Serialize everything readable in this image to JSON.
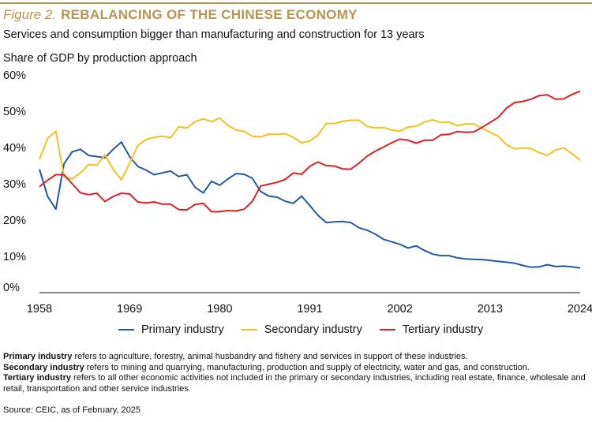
{
  "header": {
    "figure_number": "Figure 2.",
    "title": "REBALANCING OF THE CHINESE ECONOMY",
    "subtitle": "Services and consumption bigger than manufacturing and construction for 13 years",
    "y_axis_title": "Share of GDP by production approach"
  },
  "colors": {
    "primary": "#2457a8",
    "secondary": "#f2c21b",
    "tertiary": "#dd1f26",
    "accent": "#b8954e"
  },
  "chart_data": {
    "type": "line",
    "title": "REBALANCING OF THE CHINESE ECONOMY",
    "ylabel": "Share of GDP by production approach",
    "xlim": [
      1958,
      2024
    ],
    "ylim": [
      0,
      60
    ],
    "x_ticks": [
      1958,
      1969,
      1980,
      1991,
      2002,
      2013,
      2024
    ],
    "y_ticks": [
      0,
      10,
      20,
      30,
      40,
      50,
      60
    ],
    "y_tick_labels": [
      "0%",
      "10%",
      "20%",
      "30%",
      "40%",
      "50%",
      "60%"
    ],
    "grid": false,
    "legend": "bottom",
    "x": [
      1958,
      1959,
      1960,
      1961,
      1962,
      1963,
      1964,
      1965,
      1966,
      1967,
      1968,
      1969,
      1970,
      1971,
      1972,
      1973,
      1974,
      1975,
      1976,
      1977,
      1978,
      1979,
      1980,
      1981,
      1982,
      1983,
      1984,
      1985,
      1986,
      1987,
      1988,
      1989,
      1990,
      1991,
      1992,
      1993,
      1994,
      1995,
      1996,
      1997,
      1998,
      1999,
      2000,
      2001,
      2002,
      2003,
      2004,
      2005,
      2006,
      2007,
      2008,
      2009,
      2010,
      2011,
      2012,
      2013,
      2014,
      2015,
      2016,
      2017,
      2018,
      2019,
      2020,
      2021,
      2022,
      2023,
      2024
    ],
    "series": [
      {
        "name": "Primary industry",
        "color": "#2457a8",
        "values": [
          34.0,
          26.5,
          23.0,
          35.5,
          38.8,
          39.5,
          37.8,
          37.5,
          37.2,
          39.5,
          41.5,
          37.5,
          34.8,
          33.8,
          32.5,
          33.0,
          33.5,
          32.0,
          32.5,
          29.0,
          27.5,
          30.7,
          29.6,
          31.3,
          32.8,
          32.6,
          31.5,
          27.9,
          26.6,
          26.3,
          25.2,
          24.6,
          26.6,
          24.0,
          21.3,
          19.3,
          19.5,
          19.6,
          19.3,
          17.9,
          17.2,
          16.1,
          14.7,
          14.0,
          13.3,
          12.3,
          12.9,
          11.6,
          10.6,
          10.2,
          10.2,
          9.6,
          9.3,
          9.2,
          9.1,
          8.9,
          8.6,
          8.4,
          8.1,
          7.5,
          7.0,
          7.1,
          7.7,
          7.2,
          7.3,
          7.1,
          6.8
        ]
      },
      {
        "name": "Secondary industry",
        "color": "#f2c21b",
        "values": [
          36.8,
          42.5,
          44.5,
          31.9,
          31.3,
          33.0,
          35.3,
          35.1,
          38.0,
          34.0,
          31.1,
          35.6,
          40.5,
          42.2,
          42.8,
          43.1,
          42.7,
          45.7,
          45.4,
          47.1,
          47.9,
          47.1,
          48.1,
          46.1,
          44.8,
          44.4,
          43.1,
          42.9,
          43.7,
          43.6,
          43.8,
          42.8,
          41.3,
          41.8,
          43.4,
          46.6,
          46.6,
          47.2,
          47.5,
          47.5,
          45.8,
          45.4,
          45.5,
          44.8,
          44.5,
          45.6,
          45.9,
          47.0,
          47.6,
          46.9,
          47.0,
          46.0,
          46.5,
          46.5,
          45.4,
          44.2,
          43.1,
          40.8,
          39.6,
          39.9,
          39.7,
          38.6,
          37.8,
          39.3,
          39.9,
          38.3,
          36.5
        ]
      },
      {
        "name": "Tertiary industry",
        "color": "#dd1f26",
        "values": [
          29.2,
          31.0,
          32.5,
          32.5,
          30.0,
          27.5,
          27.0,
          27.4,
          25.1,
          26.5,
          27.4,
          27.2,
          25.0,
          24.7,
          25.0,
          24.4,
          24.4,
          22.9,
          22.8,
          24.3,
          24.6,
          22.3,
          22.3,
          22.6,
          22.5,
          23.0,
          25.2,
          29.4,
          29.9,
          30.4,
          31.2,
          33.0,
          32.6,
          34.8,
          36.0,
          35.0,
          34.9,
          34.1,
          34.0,
          35.7,
          37.6,
          39.0,
          40.1,
          41.3,
          42.3,
          42.0,
          41.2,
          42.0,
          42.0,
          43.5,
          43.6,
          44.4,
          44.2,
          44.3,
          45.5,
          46.9,
          48.3,
          50.8,
          52.4,
          52.7,
          53.3,
          54.3,
          54.5,
          53.3,
          53.4,
          54.6,
          55.5
        ]
      }
    ]
  },
  "notes": [
    {
      "term": "Primary industry",
      "text": " refers to agriculture, forestry, animal husbandry and fishery and services in support of these industries."
    },
    {
      "term": "Secondary industry",
      "text": " refers to mining and quarrying, manufacturing, production and supply of electricity, water and gas, and construction."
    },
    {
      "term": "Tertiary industry",
      "text": " refers to all other economic activities not included in the primary or secondary industries, including real estate, finance, wholesale and retail, transportation and other service industries."
    }
  ],
  "source": "Source: CEIC, as of February, 2025"
}
